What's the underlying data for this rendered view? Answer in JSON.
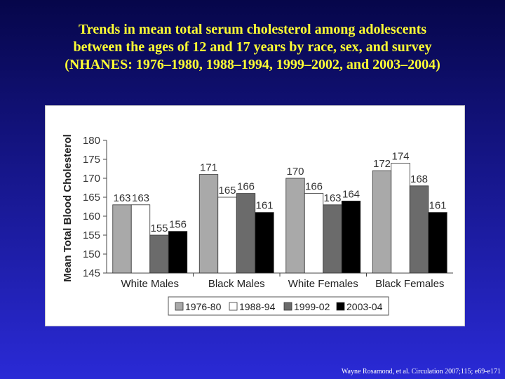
{
  "title_lines": [
    "Trends in mean total serum cholesterol among adolescents",
    "between the ages of 12 and 17 years by race, sex, and survey",
    "(NHANES: 1976–1980, 1988–1994, 1999–2002, and 2003–2004)"
  ],
  "citation": "Wayne Rosamond, et al. Circulation  2007;115; e69-e171",
  "colors": {
    "title": "#ffff33",
    "background_top": "#06064a",
    "background_bottom": "#2a2ad6"
  },
  "chart_data": {
    "type": "bar",
    "title": "",
    "xlabel": "",
    "ylabel": "Mean Total Blood Cholesterol",
    "ylim": [
      145,
      180
    ],
    "yticks": [
      145,
      150,
      155,
      160,
      165,
      170,
      175,
      180
    ],
    "categories": [
      "White Males",
      "Black Males",
      "White Females",
      "Black Females"
    ],
    "series": [
      {
        "name": "1976-80",
        "color": "#a9a9a9",
        "values": [
          163,
          171,
          170,
          172
        ]
      },
      {
        "name": "1988-94",
        "color": "#ffffff",
        "values": [
          163,
          165,
          166,
          174
        ]
      },
      {
        "name": "1999-02",
        "color": "#6b6b6b",
        "values": [
          155,
          166,
          163,
          168
        ]
      },
      {
        "name": "2003-04",
        "color": "#000000",
        "values": [
          156,
          161,
          164,
          161
        ]
      }
    ],
    "data_labels": true,
    "grid": false,
    "legend_position": "bottom"
  }
}
